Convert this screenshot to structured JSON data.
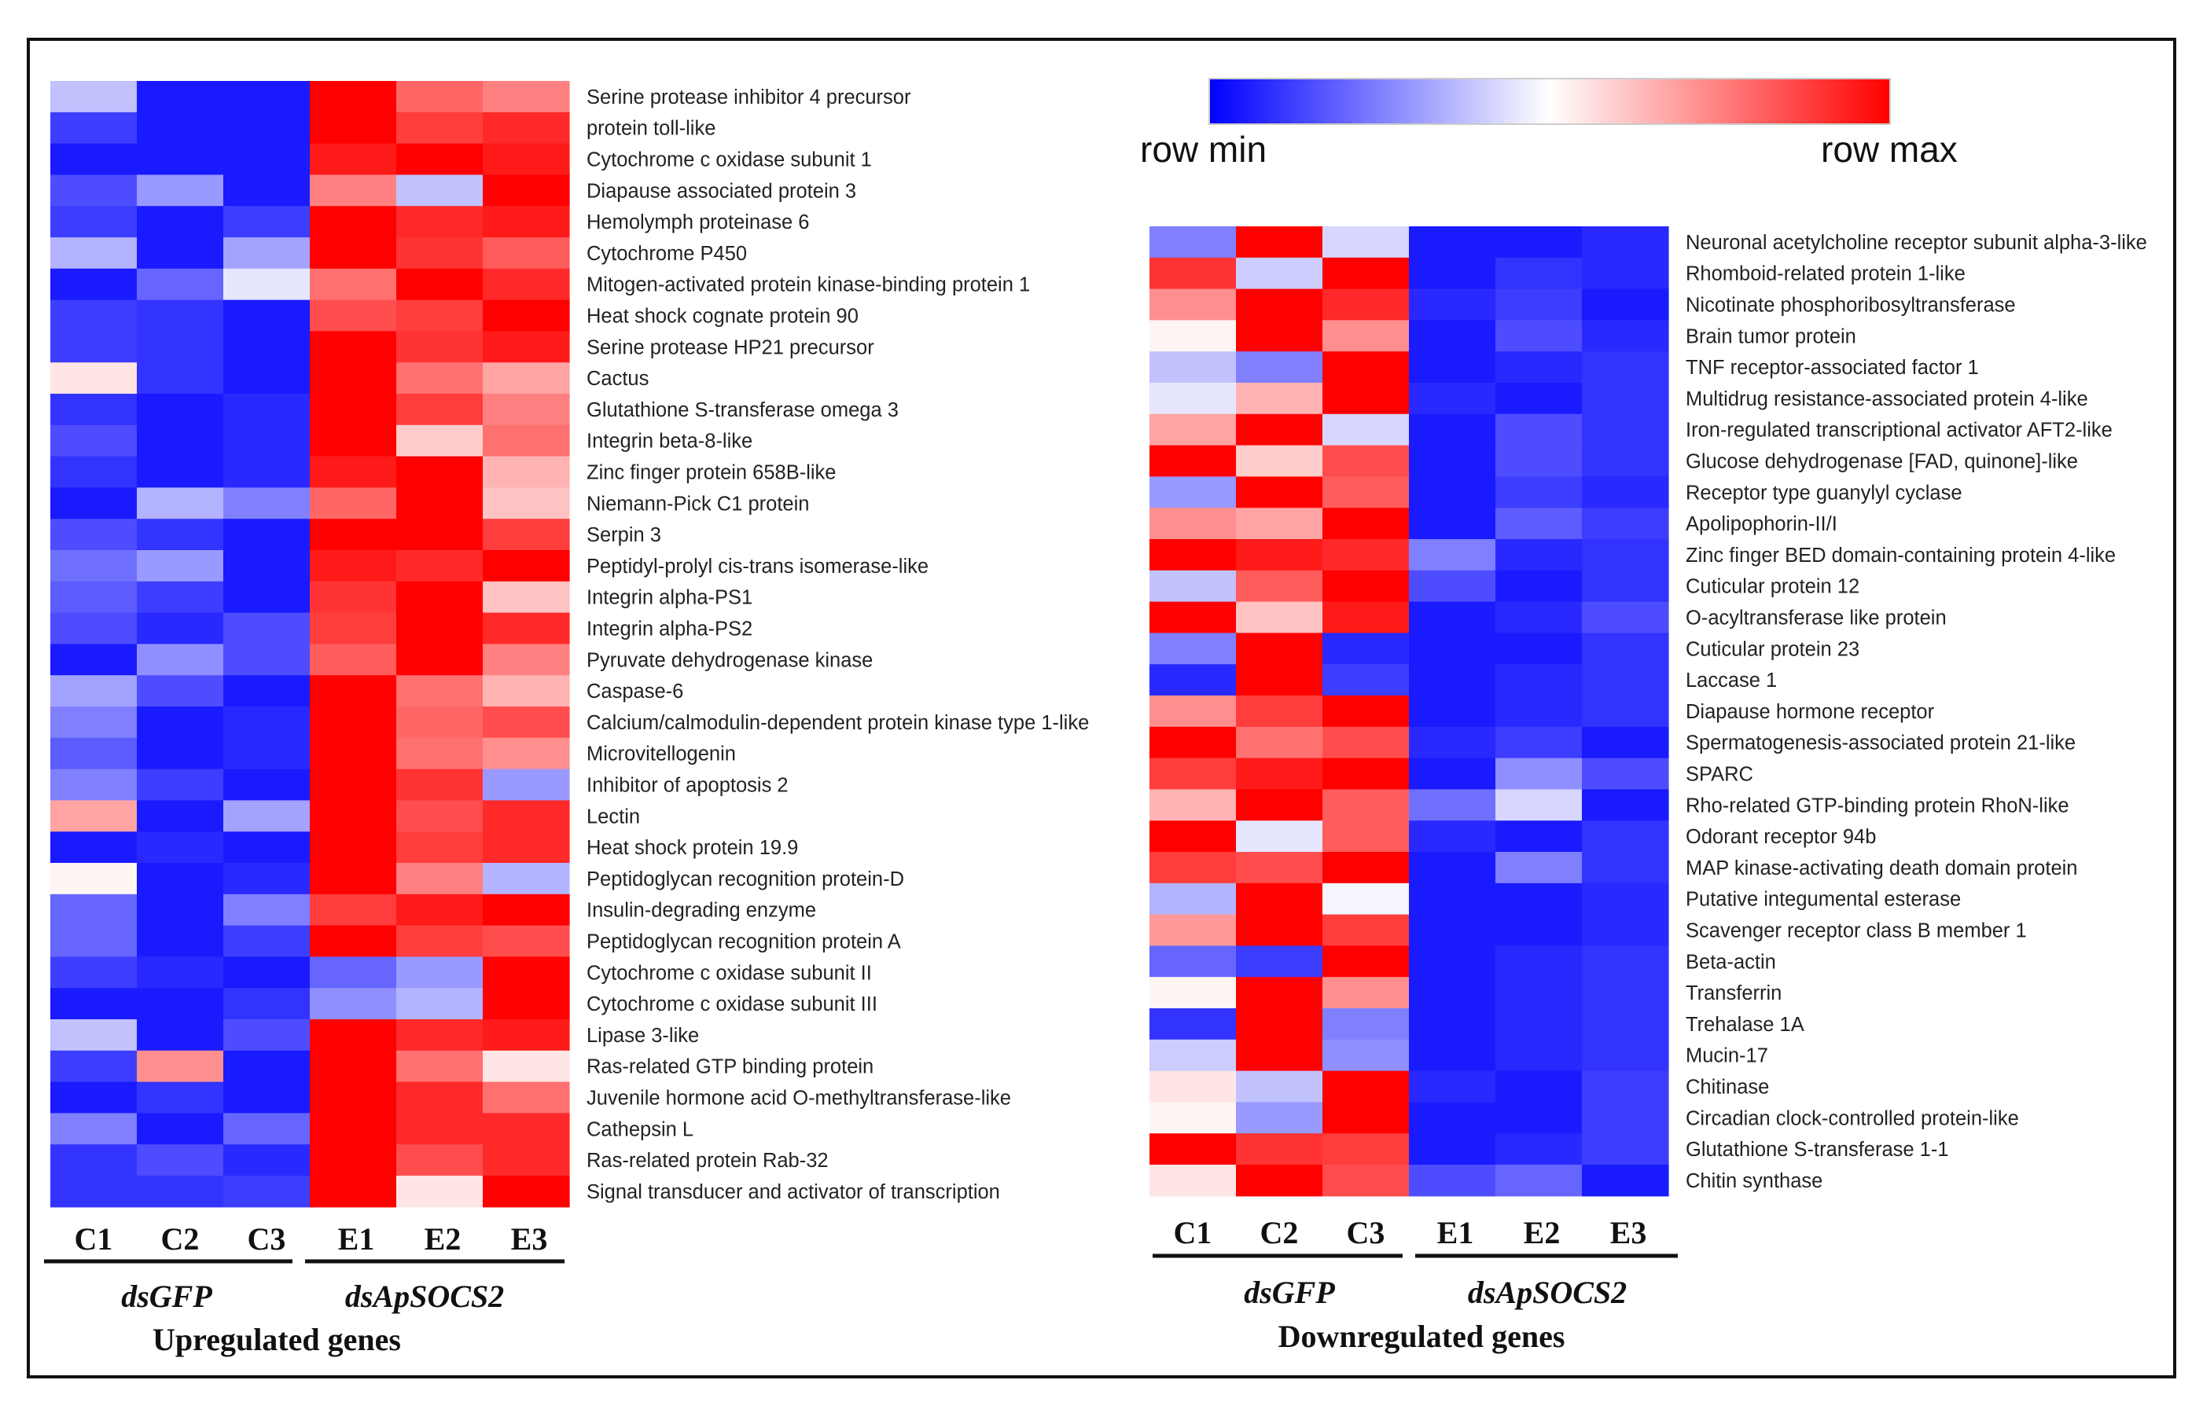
{
  "colors": {
    "min": "#0000ff",
    "mid": "#ffffff",
    "max": "#ff0000"
  },
  "legend": {
    "min_label": "row min",
    "max_label": "row max"
  },
  "chart_data": [
    {
      "type": "heatmap",
      "title": "Upregulated genes",
      "columns": [
        "C1",
        "C2",
        "C3",
        "E1",
        "E2",
        "E3"
      ],
      "groups": [
        {
          "label": "dsGFP",
          "columns": [
            "C1",
            "C2",
            "C3"
          ]
        },
        {
          "label": "dsApSOCS2",
          "columns": [
            "E1",
            "E2",
            "E3"
          ]
        }
      ],
      "value_range": [
        0,
        1
      ],
      "rows": [
        {
          "gene": "Serine protease inhibitor 4 precursor",
          "values": [
            0.38,
            0.05,
            0.05,
            1.0,
            0.8,
            0.75
          ]
        },
        {
          "gene": "protein toll-like",
          "values": [
            0.12,
            0.05,
            0.05,
            1.0,
            0.88,
            0.92
          ]
        },
        {
          "gene": "Cytochrome c oxidase subunit 1",
          "values": [
            0.05,
            0.05,
            0.05,
            0.95,
            1.0,
            0.95
          ]
        },
        {
          "gene": "Diapause associated protein 3",
          "values": [
            0.15,
            0.3,
            0.05,
            0.75,
            0.38,
            1.0
          ]
        },
        {
          "gene": "Hemolymph proteinase 6",
          "values": [
            0.12,
            0.05,
            0.12,
            1.0,
            0.92,
            0.95
          ]
        },
        {
          "gene": "Cytochrome P450",
          "values": [
            0.35,
            0.05,
            0.32,
            1.0,
            0.9,
            0.82
          ]
        },
        {
          "gene": "Mitogen-activated protein kinase-binding protein 1",
          "values": [
            0.05,
            0.2,
            0.45,
            0.78,
            1.0,
            0.92
          ]
        },
        {
          "gene": "Heat shock cognate protein 90",
          "values": [
            0.12,
            0.1,
            0.05,
            0.85,
            0.88,
            1.0
          ]
        },
        {
          "gene": "Serine protease HP21 precursor",
          "values": [
            0.12,
            0.1,
            0.05,
            1.0,
            0.9,
            0.95
          ]
        },
        {
          "gene": "Cactus",
          "values": [
            0.55,
            0.1,
            0.05,
            1.0,
            0.78,
            0.68
          ]
        },
        {
          "gene": "Glutathione S-transferase omega 3",
          "values": [
            0.1,
            0.05,
            0.08,
            1.0,
            0.88,
            0.75
          ]
        },
        {
          "gene": "Integrin beta-8-like",
          "values": [
            0.15,
            0.05,
            0.08,
            1.0,
            0.6,
            0.78
          ]
        },
        {
          "gene": "Zinc finger protein 658B-like",
          "values": [
            0.1,
            0.05,
            0.08,
            0.95,
            1.0,
            0.65
          ]
        },
        {
          "gene": "Niemann-Pick C1 protein",
          "values": [
            0.05,
            0.35,
            0.25,
            0.8,
            1.0,
            0.62
          ]
        },
        {
          "gene": "Serpin 3",
          "values": [
            0.15,
            0.1,
            0.05,
            1.0,
            1.0,
            0.88
          ]
        },
        {
          "gene": "Peptidyl-prolyl cis-trans isomerase-like",
          "values": [
            0.22,
            0.3,
            0.05,
            0.95,
            0.92,
            1.0
          ]
        },
        {
          "gene": "Integrin alpha-PS1",
          "values": [
            0.18,
            0.12,
            0.05,
            0.9,
            1.0,
            0.62
          ]
        },
        {
          "gene": "Integrin alpha-PS2",
          "values": [
            0.15,
            0.08,
            0.15,
            0.88,
            1.0,
            0.92
          ]
        },
        {
          "gene": "Pyruvate dehydrogenase kinase",
          "values": [
            0.05,
            0.28,
            0.15,
            0.82,
            1.0,
            0.75
          ]
        },
        {
          "gene": "Caspase-6",
          "values": [
            0.32,
            0.15,
            0.05,
            1.0,
            0.78,
            0.65
          ]
        },
        {
          "gene": "Calcium/calmodulin-dependent protein kinase type 1-like",
          "values": [
            0.25,
            0.05,
            0.08,
            1.0,
            0.8,
            0.85
          ]
        },
        {
          "gene": "Microvitellogenin",
          "values": [
            0.18,
            0.05,
            0.08,
            1.0,
            0.78,
            0.72
          ]
        },
        {
          "gene": "Inhibitor of apoptosis 2",
          "values": [
            0.25,
            0.12,
            0.05,
            1.0,
            0.9,
            0.3
          ]
        },
        {
          "gene": "Lectin",
          "values": [
            0.68,
            0.05,
            0.32,
            1.0,
            0.85,
            0.92
          ]
        },
        {
          "gene": "Heat shock protein 19.9",
          "values": [
            0.05,
            0.08,
            0.05,
            1.0,
            0.88,
            0.92
          ]
        },
        {
          "gene": "Peptidoglycan recognition protein-D",
          "values": [
            0.52,
            0.05,
            0.08,
            1.0,
            0.75,
            0.35
          ]
        },
        {
          "gene": "Insulin-degrading enzyme",
          "values": [
            0.2,
            0.05,
            0.25,
            0.88,
            0.95,
            1.0
          ]
        },
        {
          "gene": "Peptidoglycan recognition protein A",
          "values": [
            0.2,
            0.05,
            0.12,
            1.0,
            0.88,
            0.85
          ]
        },
        {
          "gene": "Cytochrome c oxidase subunit II",
          "values": [
            0.12,
            0.08,
            0.05,
            0.2,
            0.3,
            1.0
          ]
        },
        {
          "gene": "Cytochrome c oxidase subunit III",
          "values": [
            0.05,
            0.05,
            0.1,
            0.28,
            0.35,
            1.0
          ]
        },
        {
          "gene": "Lipase 3-like",
          "values": [
            0.38,
            0.05,
            0.15,
            1.0,
            0.92,
            0.95
          ]
        },
        {
          "gene": "Ras-related GTP binding protein",
          "values": [
            0.12,
            0.72,
            0.05,
            1.0,
            0.78,
            0.55
          ]
        },
        {
          "gene": "Juvenile hormone acid O-methyltransferase-like",
          "values": [
            0.05,
            0.1,
            0.05,
            1.0,
            0.92,
            0.78
          ]
        },
        {
          "gene": "Cathepsin L",
          "values": [
            0.25,
            0.05,
            0.2,
            1.0,
            0.92,
            0.92
          ]
        },
        {
          "gene": "Ras-related protein Rab-32",
          "values": [
            0.1,
            0.15,
            0.08,
            1.0,
            0.85,
            0.92
          ]
        },
        {
          "gene": "Signal transducer and activator of transcription",
          "values": [
            0.1,
            0.1,
            0.12,
            1.0,
            0.55,
            1.0
          ]
        }
      ]
    },
    {
      "type": "heatmap",
      "title": "Downregulated genes",
      "columns": [
        "C1",
        "C2",
        "C3",
        "E1",
        "E2",
        "E3"
      ],
      "groups": [
        {
          "label": "dsGFP",
          "columns": [
            "C1",
            "C2",
            "C3"
          ]
        },
        {
          "label": "dsApSOCS2",
          "columns": [
            "E1",
            "E2",
            "E3"
          ]
        }
      ],
      "value_range": [
        0,
        1
      ],
      "rows": [
        {
          "gene": "Neuronal acetylcholine receptor subunit alpha-3-like",
          "values": [
            0.25,
            1.0,
            0.42,
            0.05,
            0.05,
            0.08
          ]
        },
        {
          "gene": "Rhomboid-related protein 1-like",
          "values": [
            0.9,
            0.4,
            1.0,
            0.05,
            0.1,
            0.08
          ]
        },
        {
          "gene": "Nicotinate phosphoribosyltransferase",
          "values": [
            0.72,
            1.0,
            0.92,
            0.08,
            0.12,
            0.05
          ]
        },
        {
          "gene": "Brain tumor protein",
          "values": [
            0.52,
            1.0,
            0.72,
            0.05,
            0.15,
            0.08
          ]
        },
        {
          "gene": "TNF receptor-associated factor 1",
          "values": [
            0.38,
            0.25,
            1.0,
            0.05,
            0.08,
            0.1
          ]
        },
        {
          "gene": "Multidrug resistance-associated protein 4-like",
          "values": [
            0.45,
            0.65,
            1.0,
            0.08,
            0.05,
            0.1
          ]
        },
        {
          "gene": "Iron-regulated transcriptional activator AFT2-like",
          "values": [
            0.68,
            1.0,
            0.42,
            0.05,
            0.15,
            0.1
          ]
        },
        {
          "gene": "Glucose dehydrogenase [FAD, quinone]-like",
          "values": [
            1.0,
            0.6,
            0.85,
            0.05,
            0.15,
            0.1
          ]
        },
        {
          "gene": "Receptor type guanylyl cyclase",
          "values": [
            0.3,
            1.0,
            0.82,
            0.05,
            0.12,
            0.08
          ]
        },
        {
          "gene": "Apolipophorin-II/I",
          "values": [
            0.72,
            0.68,
            1.0,
            0.05,
            0.18,
            0.12
          ]
        },
        {
          "gene": "Zinc finger BED domain-containing protein 4-like",
          "values": [
            1.0,
            0.95,
            0.92,
            0.25,
            0.08,
            0.1
          ]
        },
        {
          "gene": "Cuticular protein 12",
          "values": [
            0.38,
            0.82,
            1.0,
            0.15,
            0.05,
            0.1
          ]
        },
        {
          "gene": "O-acyltransferase like protein",
          "values": [
            1.0,
            0.62,
            0.95,
            0.05,
            0.08,
            0.15
          ]
        },
        {
          "gene": "Cuticular protein 23",
          "values": [
            0.25,
            1.0,
            0.08,
            0.05,
            0.05,
            0.1
          ]
        },
        {
          "gene": "Laccase 1",
          "values": [
            0.08,
            1.0,
            0.12,
            0.05,
            0.08,
            0.1
          ]
        },
        {
          "gene": "Diapause hormone receptor",
          "values": [
            0.72,
            0.88,
            1.0,
            0.05,
            0.08,
            0.1
          ]
        },
        {
          "gene": "Spermatogenesis-associated protein 21-like",
          "values": [
            1.0,
            0.78,
            0.85,
            0.08,
            0.12,
            0.05
          ]
        },
        {
          "gene": "SPARC",
          "values": [
            0.88,
            0.95,
            1.0,
            0.05,
            0.28,
            0.15
          ]
        },
        {
          "gene": "Rho-related GTP-binding protein RhoN-like",
          "values": [
            0.65,
            1.0,
            0.82,
            0.22,
            0.42,
            0.05
          ]
        },
        {
          "gene": "Odorant receptor 94b",
          "values": [
            1.0,
            0.45,
            0.82,
            0.08,
            0.05,
            0.1
          ]
        },
        {
          "gene": "MAP kinase-activating death domain protein",
          "values": [
            0.88,
            0.85,
            1.0,
            0.05,
            0.25,
            0.1
          ]
        },
        {
          "gene": "Putative integumental esterase",
          "values": [
            0.35,
            1.0,
            0.48,
            0.05,
            0.05,
            0.08
          ]
        },
        {
          "gene": "Scavenger receptor class B member 1",
          "values": [
            0.7,
            1.0,
            0.88,
            0.05,
            0.05,
            0.08
          ]
        },
        {
          "gene": "Beta-actin",
          "values": [
            0.2,
            0.12,
            1.0,
            0.05,
            0.08,
            0.1
          ]
        },
        {
          "gene": "Transferrin",
          "values": [
            0.52,
            1.0,
            0.72,
            0.05,
            0.08,
            0.1
          ]
        },
        {
          "gene": "Trehalase 1A",
          "values": [
            0.1,
            1.0,
            0.25,
            0.05,
            0.08,
            0.1
          ]
        },
        {
          "gene": "Mucin-17",
          "values": [
            0.4,
            1.0,
            0.28,
            0.05,
            0.08,
            0.1
          ]
        },
        {
          "gene": "Chitinase",
          "values": [
            0.55,
            0.38,
            1.0,
            0.08,
            0.05,
            0.12
          ]
        },
        {
          "gene": "Circadian clock-controlled protein-like",
          "values": [
            0.52,
            0.3,
            1.0,
            0.05,
            0.05,
            0.12
          ]
        },
        {
          "gene": "Glutathione S-transferase 1-1",
          "values": [
            1.0,
            0.9,
            0.88,
            0.05,
            0.08,
            0.12
          ]
        },
        {
          "gene": "Chitin synthase",
          "values": [
            0.55,
            1.0,
            0.85,
            0.15,
            0.2,
            0.05
          ]
        }
      ]
    }
  ]
}
